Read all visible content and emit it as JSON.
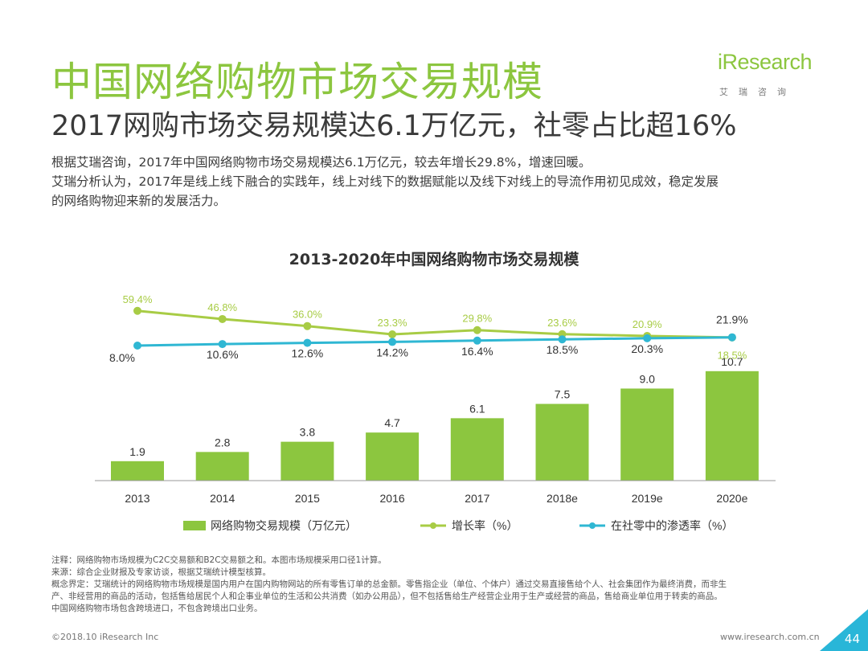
{
  "header": {
    "title": "中国网络购物市场交易规模",
    "subtitle": "2017网购市场交易规模达6.1万亿元，社零占比超16%",
    "paragraphs": [
      "根据艾瑞咨询，2017年中国网络购物市场交易规模达6.1万亿元，较去年增长29.8%，增速回暖。",
      "艾瑞分析认为，2017年是线上线下融合的实践年，线上对线下的数据赋能以及线下对线上的导流作用初见成效，稳定发展",
      "的网络购物迎来新的发展活力。"
    ]
  },
  "logo": {
    "word": "iResearch",
    "sub": "艾瑞咨询"
  },
  "colors": {
    "bar": "#8cc63f",
    "growth": "#a8cc45",
    "penetration": "#2fb7d3",
    "accent": "#8cc63f"
  },
  "chart_data": {
    "type": "bar",
    "title": "2013-2020年中国网络购物市场交易规模",
    "categories": [
      "2013",
      "2014",
      "2015",
      "2016",
      "2017",
      "2018e",
      "2019e",
      "2020e"
    ],
    "series": [
      {
        "name": "网络购物交易规模（万亿元）",
        "type": "bar",
        "values": [
          1.9,
          2.8,
          3.8,
          4.7,
          6.1,
          7.5,
          9.0,
          10.7
        ],
        "labels": [
          "1.9",
          "2.8",
          "3.8",
          "4.7",
          "6.1",
          "7.5",
          "9.0",
          "10.7"
        ]
      },
      {
        "name": "增长率（%）",
        "type": "line",
        "values": [
          59.4,
          46.8,
          36.0,
          23.3,
          29.8,
          23.6,
          20.9,
          18.5
        ],
        "labels": [
          "59.4%",
          "46.8%",
          "36.0%",
          "23.3%",
          "29.8%",
          "23.6%",
          "20.9%",
          "18.5%"
        ]
      },
      {
        "name": "在社零中的渗透率（%）",
        "type": "line",
        "values": [
          8.0,
          10.6,
          12.6,
          14.2,
          16.4,
          18.5,
          20.3,
          21.9
        ],
        "labels": [
          "8.0%",
          "10.6%",
          "12.6%",
          "14.2%",
          "16.4%",
          "18.5%",
          "20.3%",
          "21.9%"
        ]
      }
    ],
    "legend_position": "bottom",
    "grid": false
  },
  "notes": [
    "注释：网络购物市场规模为C2C交易额和B2C交易额之和。本图市场规模采用口径1计算。",
    "来源：综合企业财报及专家访谈，根据艾瑞统计模型核算。",
    "概念界定：艾瑞统计的网络购物市场规模是国内用户在国内购物网站的所有零售订单的总金额。零售指企业（单位、个体户）通过交易直接售给个人、社会集团作为最终消费，而非生",
    "产、非经营用的商品的活动，包括售给居民个人和企事业单位的生活和公共消费（如办公用品），但不包括售给生产经营企业用于生产或经营的商品，售给商业单位用于转卖的商品。",
    "中国网络购物市场包含跨境进口，不包含跨境出口业务。"
  ],
  "footer": {
    "copyright": "©2018.10 iResearch Inc",
    "url": "www.iresearch.com.cn",
    "page": "44"
  }
}
